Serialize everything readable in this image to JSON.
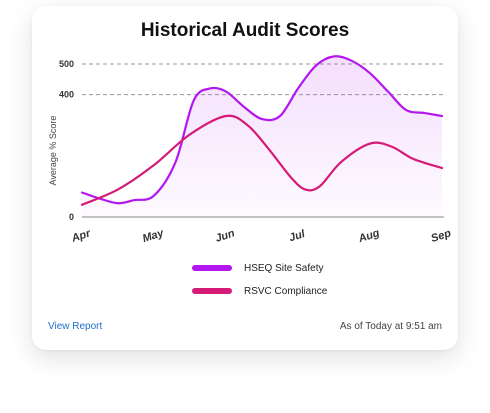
{
  "chart_data": {
    "type": "line",
    "title": "Historical Audit Scores",
    "ylabel": "Average % Score",
    "xlabel": "",
    "categories": [
      "Apr",
      "May",
      "Jun",
      "Jul",
      "Aug",
      "Sep"
    ],
    "yticks": [
      0,
      400,
      500
    ],
    "ylim": [
      0,
      500
    ],
    "grid": "dashed horizontal at 400 and 500",
    "legend": "bottom-center",
    "series": [
      {
        "name": "HSEQ Site Safety",
        "color": "#b416f0",
        "x": [
          0,
          0.25,
          0.5,
          0.72,
          1.0,
          1.3,
          1.55,
          1.78,
          2.0,
          2.25,
          2.5,
          2.75,
          3.0,
          3.25,
          3.5,
          3.75,
          4.0,
          4.25,
          4.5,
          4.75,
          5.0
        ],
        "values": [
          80,
          60,
          45,
          55,
          70,
          180,
          380,
          420,
          410,
          360,
          320,
          330,
          420,
          495,
          525,
          510,
          470,
          410,
          350,
          340,
          330
        ]
      },
      {
        "name": "RSVC Compliance",
        "color": "#d61a77",
        "x": [
          0,
          0.5,
          1.0,
          1.5,
          2.0,
          2.3,
          2.6,
          2.9,
          3.1,
          3.3,
          3.6,
          4.0,
          4.3,
          4.6,
          5.0
        ],
        "values": [
          40,
          90,
          170,
          270,
          330,
          300,
          220,
          130,
          90,
          100,
          180,
          240,
          230,
          190,
          160
        ]
      }
    ]
  },
  "legend": {
    "items": [
      {
        "label": "HSEQ Site Safety",
        "color": "#b416f0"
      },
      {
        "label": "RSVC Compliance",
        "color": "#d61a77"
      }
    ]
  },
  "footer": {
    "link": "View Report",
    "timestamp": "As of Today at 9:51 am"
  }
}
